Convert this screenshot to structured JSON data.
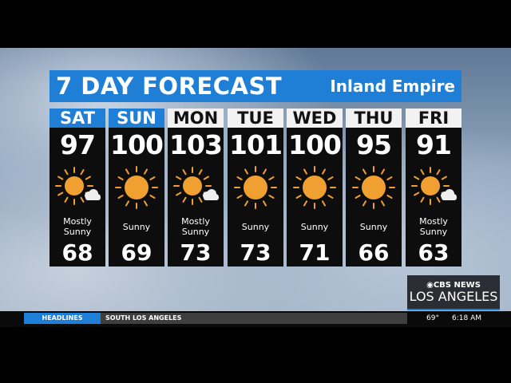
{
  "header": {
    "title": "7 DAY FORECAST",
    "region": "Inland Empire"
  },
  "days": [
    {
      "day": "SAT",
      "high": "97",
      "low": "68",
      "condition": "Mostly Sunny",
      "icon": "sun-cloud-icon",
      "highlight": true
    },
    {
      "day": "SUN",
      "high": "100",
      "low": "69",
      "condition": "Sunny",
      "icon": "sun-icon",
      "highlight": true
    },
    {
      "day": "MON",
      "high": "103",
      "low": "73",
      "condition": "Mostly Sunny",
      "icon": "sun-cloud-icon",
      "highlight": false
    },
    {
      "day": "TUE",
      "high": "101",
      "low": "73",
      "condition": "Sunny",
      "icon": "sun-icon",
      "highlight": false
    },
    {
      "day": "WED",
      "high": "100",
      "low": "71",
      "condition": "Sunny",
      "icon": "sun-icon",
      "highlight": false
    },
    {
      "day": "THU",
      "high": "95",
      "low": "66",
      "condition": "Sunny",
      "icon": "sun-icon",
      "highlight": false
    },
    {
      "day": "FRI",
      "high": "91",
      "low": "63",
      "condition": "Mostly Sunny",
      "icon": "sun-cloud-icon",
      "highlight": false
    }
  ],
  "logo": {
    "network": "CBS NEWS",
    "city": "LOS ANGELES"
  },
  "ticker": {
    "label": "HEADLINES",
    "story": "SOUTH LOS ANGELES",
    "temperature": "69°",
    "time": "6:18 AM"
  },
  "colors": {
    "accent": "#1f7fd6",
    "sun": "#f0a030"
  }
}
